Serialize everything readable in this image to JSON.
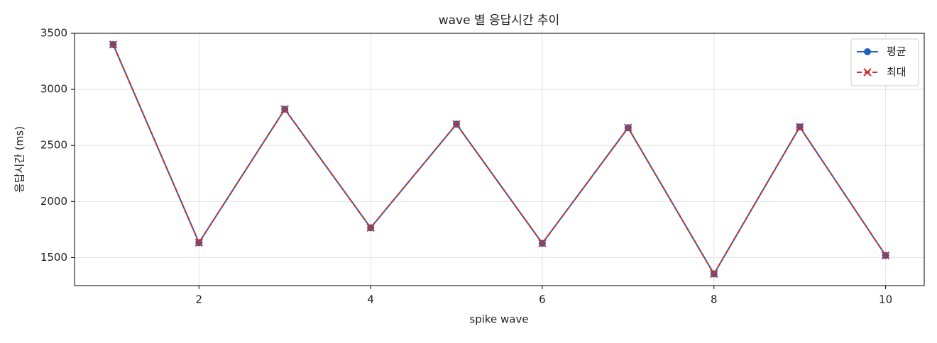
{
  "chart_data": {
    "type": "line",
    "title": "wave 별 응답시간 추이",
    "x_label": "spike wave",
    "y_label": "응답시간 (ms)",
    "x": [
      1,
      2,
      3,
      4,
      5,
      6,
      7,
      8,
      9,
      10
    ],
    "series": [
      {
        "name": "평균",
        "color": "#1f63b8",
        "marker": "circle",
        "dash": false,
        "values": [
          3400,
          1633,
          2823,
          1766,
          2690,
          1627,
          2658,
          1354,
          2665,
          1519
        ]
      },
      {
        "name": "최대",
        "color": "#c8302c",
        "marker": "x",
        "dash": true,
        "values": [
          3400,
          1633,
          2823,
          1766,
          2690,
          1627,
          2658,
          1354,
          2665,
          1519
        ]
      }
    ],
    "xlim": [
      0.55,
      10.45
    ],
    "xticks": [
      2,
      4,
      6,
      8,
      10
    ],
    "ylim": [
      1250,
      3500
    ],
    "yticks": [
      1500,
      2000,
      2500,
      3000,
      3500
    ],
    "grid": true,
    "legend": "upper right"
  }
}
